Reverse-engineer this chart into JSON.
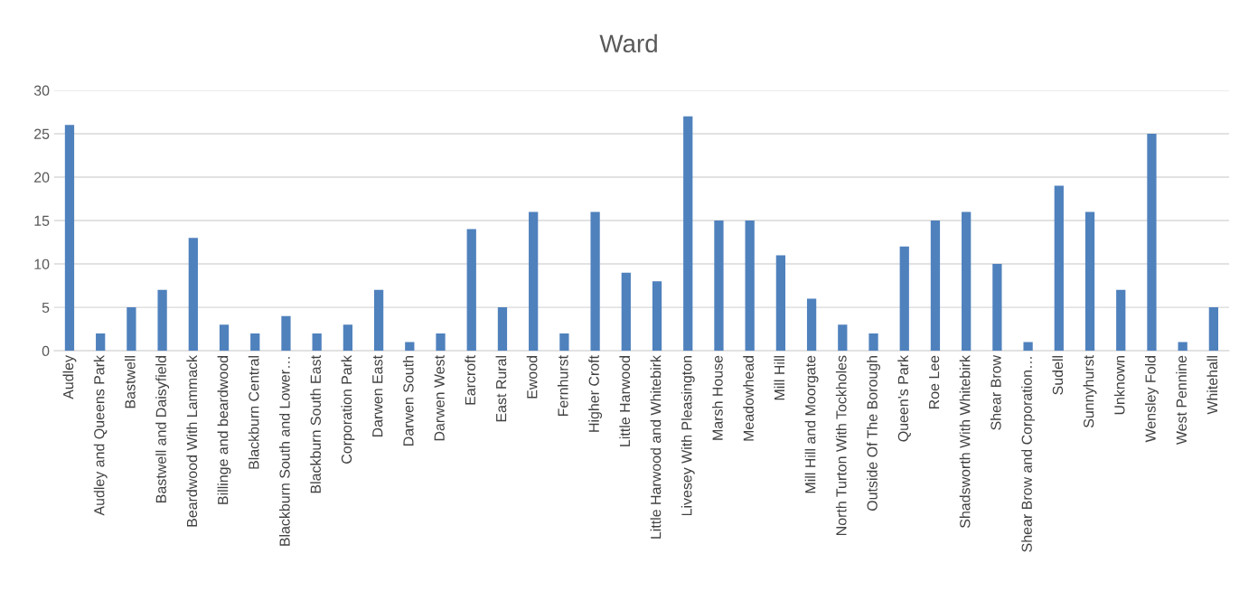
{
  "chart_data": {
    "type": "bar",
    "title": "Ward",
    "categories": [
      "Audley",
      "Audley and Queens Park",
      "Bastwell",
      "Bastwell and Daisyfield",
      "Beardwood With Lammack",
      "Billinge and beardwood",
      "Blackburn Central",
      "Blackburn South and Lower…",
      "Blackburn South East",
      "Corporation Park",
      "Darwen East",
      "Darwen South",
      "Darwen West",
      "Earcroft",
      "East Rural",
      "Ewood",
      "Fernhurst",
      "Higher Croft",
      "Little Harwood",
      "Little Harwood and Whitebirk",
      "Livesey With Pleasington",
      "Marsh House",
      "Meadowhead",
      "Mill Hill",
      "Mill Hill and Moorgate",
      "North Turton With Tockholes",
      "Outside Of The Borough",
      "Queen's Park",
      "Roe Lee",
      "Shadsworth With Whitebirk",
      "Shear Brow",
      "Shear Brow and Corporation…",
      "Sudell",
      "Sunnyhurst",
      "Unknown",
      "Wensley Fold",
      "West Pennine",
      "Whitehall"
    ],
    "values": [
      26,
      2,
      5,
      7,
      13,
      3,
      2,
      4,
      2,
      3,
      7,
      1,
      2,
      14,
      5,
      16,
      2,
      16,
      9,
      8,
      27,
      15,
      15,
      11,
      6,
      3,
      2,
      12,
      15,
      16,
      10,
      1,
      19,
      16,
      7,
      25,
      1,
      5
    ],
    "color": "#4f81bd",
    "ylim": [
      0,
      30
    ],
    "yticks": [
      0,
      5,
      10,
      15,
      20,
      25,
      30
    ],
    "grid": "y",
    "legend": false
  }
}
